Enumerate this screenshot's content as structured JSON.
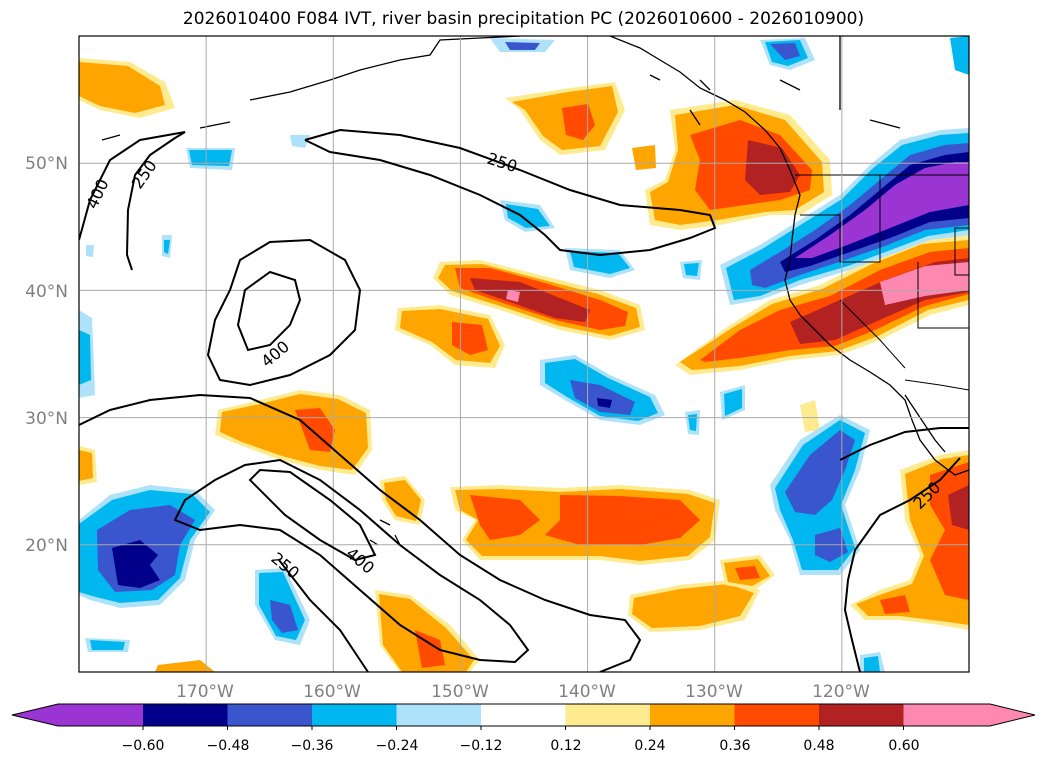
{
  "title": "2026010400 F084 IVT, river basin precipitation PC (2026010600 - 2026010900)",
  "map": {
    "lon_range": [
      -180,
      -110
    ],
    "lat_range": [
      10,
      60
    ],
    "lat_labels": [
      "50°N",
      "40°N",
      "30°N",
      "20°N"
    ],
    "lat_values": [
      50,
      40,
      30,
      20
    ],
    "lon_labels": [
      "170°W",
      "160°W",
      "150°W",
      "140°W",
      "130°W",
      "120°W"
    ],
    "lon_values": [
      -170,
      -160,
      -150,
      -140,
      -130,
      -120
    ],
    "gridlines": true,
    "ivt_contour_levels": [
      250,
      400
    ],
    "ivt_contour_labels": [
      "250",
      "400",
      "400",
      "250",
      "250",
      "400",
      "250"
    ]
  },
  "colorbar": {
    "ticks": [
      "−0.60",
      "−0.48",
      "−0.36",
      "−0.24",
      "−0.12",
      "0.12",
      "0.24",
      "0.36",
      "0.48",
      "0.60"
    ],
    "colors": [
      "#9a35d4",
      "#00008b",
      "#3a56cf",
      "#00b7ef",
      "#ade2fa",
      "#ffffff",
      "#ffeb8f",
      "#ffa500",
      "#ff4a00",
      "#b22222",
      "#ff88b0"
    ]
  }
}
